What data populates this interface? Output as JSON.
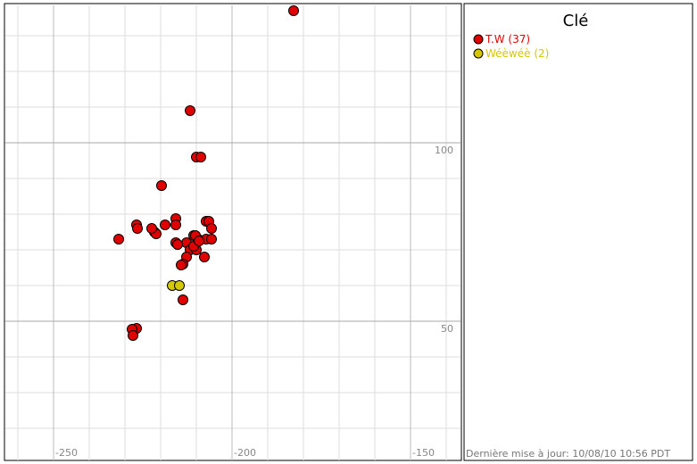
{
  "chart_data": {
    "type": "scatter",
    "legend_title": "Clé",
    "footer": "Dernière mise à jour: 10/08/10 10:56 PDT",
    "xlim": [
      -263.5,
      -136
    ],
    "ylim": [
      11,
      138.5
    ],
    "xticks": [
      -250,
      -200,
      -150
    ],
    "yticks": [
      50,
      100
    ],
    "grid": true,
    "grid_step": 10,
    "series": [
      {
        "name": "T.W (37)",
        "color": "#e00000",
        "x": [
          -182.75,
          -211.75,
          -210,
          -208.75,
          -219.75,
          -226.75,
          -226.5,
          -231.75,
          -221.75,
          -221.25,
          -218.75,
          -215.75,
          -215.75,
          -207.25,
          -206.5,
          -205.75,
          -210.75,
          -209.5,
          -207.25,
          -212.75,
          -215.75,
          -215.25,
          -211.75,
          -210,
          -212.75,
          -207.75,
          -213.75,
          -214.25,
          -213.75,
          -226.75,
          -228,
          -227.75,
          -210.25,
          -210.75,
          -209.25,
          -205.75,
          -222.5
        ],
        "values": [
          137,
          109,
          96,
          96,
          88,
          77,
          76,
          73,
          75,
          74.5,
          77,
          78.75,
          77,
          78,
          78,
          76,
          74,
          73,
          73,
          72,
          72,
          71.5,
          70,
          70,
          68,
          68,
          66,
          65.75,
          56,
          48,
          47.75,
          46,
          74,
          71,
          72.5,
          73,
          76
        ]
      },
      {
        "name": "Wéèwéè (2)",
        "color": "#d4c800",
        "x": [
          -216.75,
          -214.75
        ],
        "values": [
          60,
          60
        ]
      }
    ]
  }
}
